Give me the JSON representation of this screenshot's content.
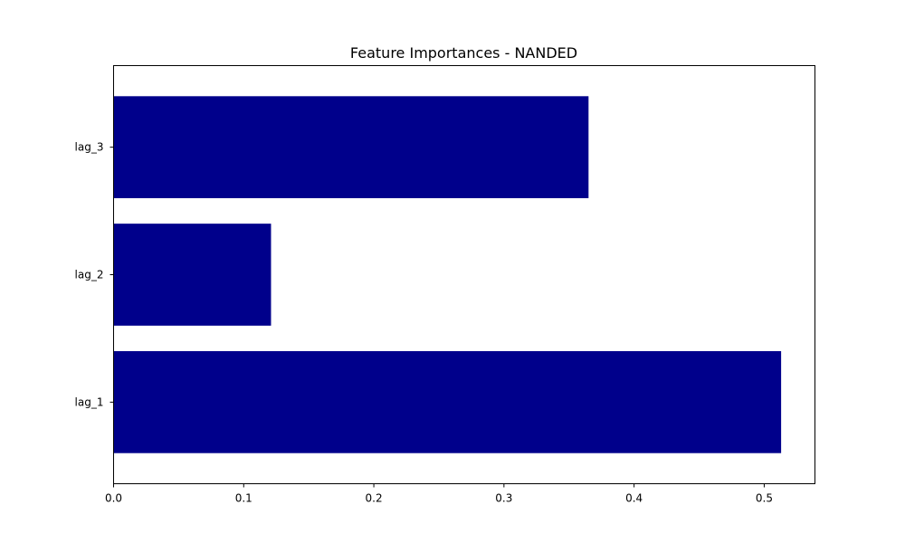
{
  "chart_data": {
    "type": "bar",
    "orientation": "horizontal",
    "title": "Feature Importances - NANDED",
    "xlabel": "",
    "ylabel": "",
    "categories": [
      "lag_1",
      "lag_2",
      "lag_3"
    ],
    "values": [
      0.513,
      0.121,
      0.365
    ],
    "xlim": [
      0.0,
      0.539
    ],
    "xticks": [
      0.0,
      0.1,
      0.2,
      0.3,
      0.4,
      0.5
    ],
    "xtick_labels": [
      "0.0",
      "0.1",
      "0.2",
      "0.3",
      "0.4",
      "0.5"
    ],
    "bar_color": "#00008b",
    "grid": false,
    "legend": "none"
  }
}
